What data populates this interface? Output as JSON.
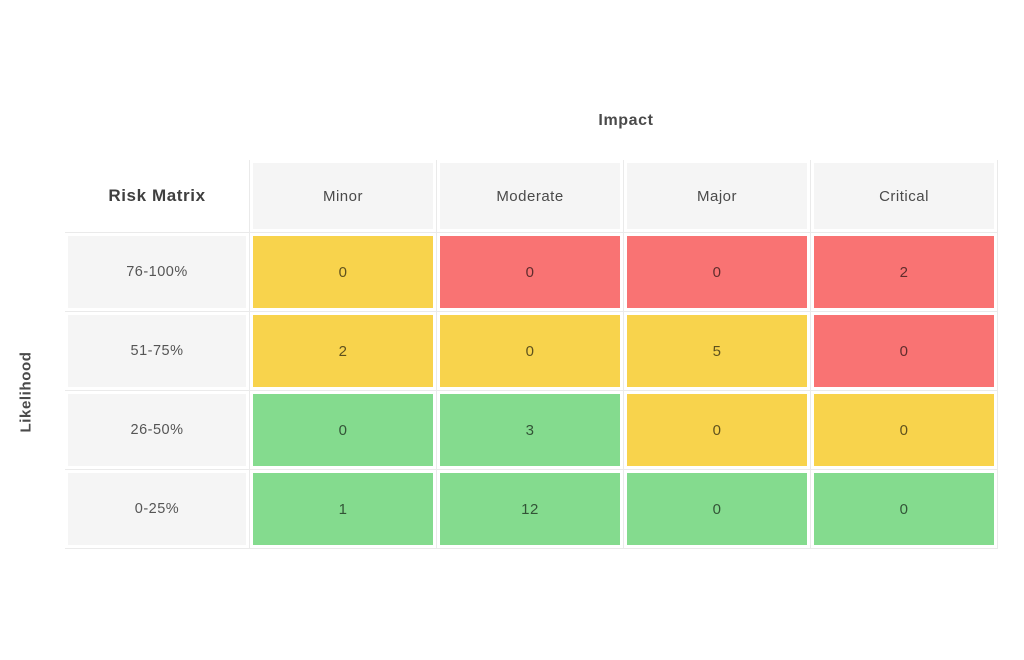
{
  "colors": {
    "yellow": "#F8D34C",
    "red": "#F97373",
    "green": "#84DB8E",
    "label_bg": "#F5F5F5",
    "grid": "#EAEAEA",
    "text": "#4A4A4A"
  },
  "chart_data": {
    "type": "heatmap",
    "title": "Risk Matrix",
    "xlabel": "Impact",
    "ylabel": "Likelihood",
    "columns": [
      "Minor",
      "Moderate",
      "Major",
      "Critical"
    ],
    "rows": [
      "76-100%",
      "51-75%",
      "26-50%",
      "0-25%"
    ],
    "values": [
      [
        0,
        0,
        0,
        2
      ],
      [
        2,
        0,
        5,
        0
      ],
      [
        0,
        3,
        0,
        0
      ],
      [
        1,
        12,
        0,
        0
      ]
    ],
    "cell_colors": [
      [
        "yellow",
        "red",
        "red",
        "red"
      ],
      [
        "yellow",
        "yellow",
        "yellow",
        "red"
      ],
      [
        "green",
        "green",
        "yellow",
        "yellow"
      ],
      [
        "green",
        "green",
        "green",
        "green"
      ]
    ],
    "legend": "none",
    "grid": "on",
    "severity_palette": {
      "green": "#84DB8E",
      "yellow": "#F8D34C",
      "red": "#F97373"
    }
  }
}
